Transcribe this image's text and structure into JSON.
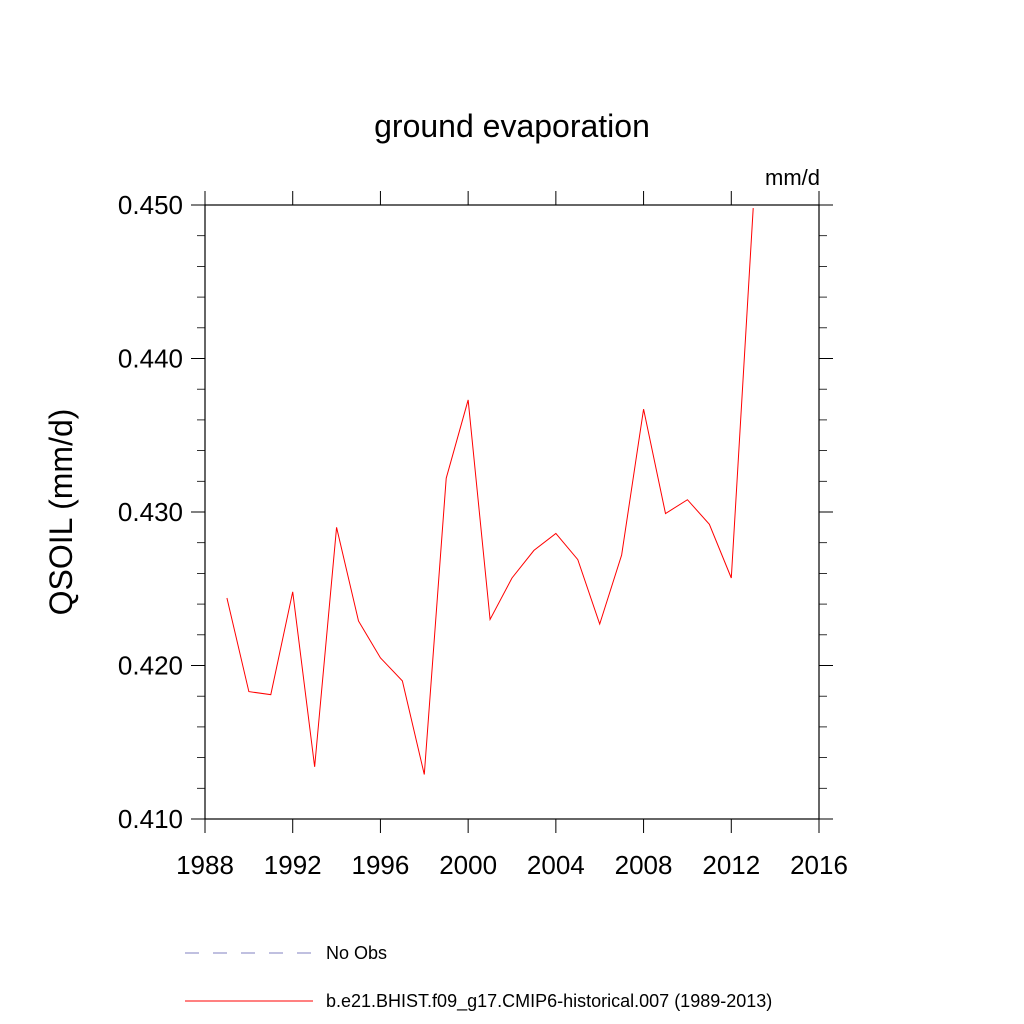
{
  "chart_data": {
    "type": "line",
    "title": "ground evaporation",
    "units_label": "mm/d",
    "ylabel": "QSOIL  (mm/d)",
    "xlabel": "",
    "xlim": [
      1988,
      2016
    ],
    "ylim": [
      0.41,
      0.45
    ],
    "x_ticks": [
      "1988",
      "1992",
      "1996",
      "2000",
      "2004",
      "2008",
      "2012",
      "2016"
    ],
    "y_ticks": [
      "0.410",
      "0.420",
      "0.430",
      "0.440",
      "0.450"
    ],
    "grid": false,
    "legend_position": "bottom",
    "series": [
      {
        "name": "b.e21.BHIST.f09_g17.CMIP6-historical.007 (1989-2013)",
        "color": "#ff0000",
        "style": "solid",
        "x": [
          1989,
          1990,
          1991,
          1992,
          1993,
          1994,
          1995,
          1996,
          1997,
          1998,
          1999,
          2000,
          2001,
          2002,
          2003,
          2004,
          2005,
          2006,
          2007,
          2008,
          2009,
          2010,
          2011,
          2012,
          2013
        ],
        "y": [
          0.4244,
          0.4183,
          0.4181,
          0.4248,
          0.4134,
          0.429,
          0.4229,
          0.4205,
          0.419,
          0.4129,
          0.4322,
          0.4373,
          0.423,
          0.4257,
          0.4275,
          0.4286,
          0.4269,
          0.4227,
          0.4272,
          0.4367,
          0.4299,
          0.4308,
          0.4292,
          0.4257,
          0.4498
        ]
      }
    ],
    "legend": [
      {
        "label": "No Obs",
        "color": "#8080c0",
        "style": "dashed"
      },
      {
        "label": "b.e21.BHIST.f09_g17.CMIP6-historical.007 (1989-2013)",
        "color": "#ff0000",
        "style": "solid"
      }
    ]
  }
}
